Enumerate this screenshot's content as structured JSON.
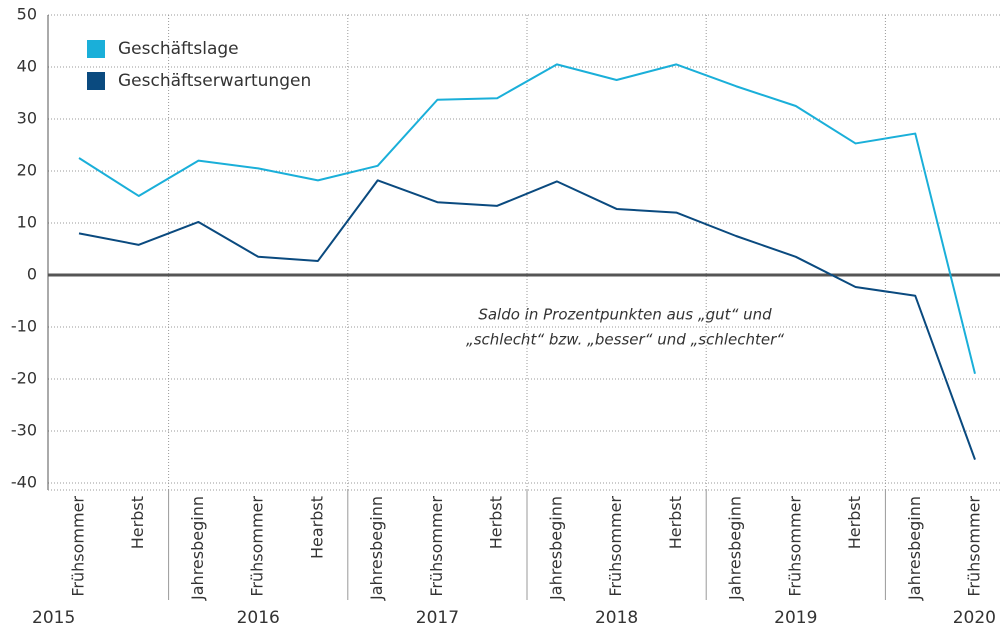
{
  "chart_data": {
    "type": "line",
    "categories": [
      "Frühsommer",
      "Herbst",
      "Jahresbeginn",
      "Frühsommer",
      "Hearbst",
      "Jahresbeginn",
      "Frühsommer",
      "Herbst",
      "Jahresbeginn",
      "Frühsommer",
      "Herbst",
      "Jahresbeginn",
      "Frühsommer",
      "Herbst",
      "Jahresbeginn",
      "Frühsommer"
    ],
    "years": [
      "2015",
      "2016",
      "2017",
      "2018",
      "2019",
      "2020"
    ],
    "series": [
      {
        "name": "Geschäftslage",
        "color": "#1aafd9",
        "values": [
          22.5,
          15.2,
          22,
          20.5,
          18.2,
          21,
          33.7,
          34,
          40.5,
          37.5,
          40.5,
          36.3,
          32.5,
          25.3,
          27.2,
          -19
        ]
      },
      {
        "name": "Geschäftserwartungen",
        "color": "#0a4a7f",
        "values": [
          8,
          5.8,
          10.2,
          3.5,
          2.7,
          18.2,
          14,
          13.3,
          18,
          12.7,
          12,
          7.5,
          3.5,
          -2.3,
          -4,
          -35.5
        ]
      }
    ],
    "ylim": [
      -40,
      50
    ],
    "yticks": [
      -40,
      -30,
      -20,
      -10,
      0,
      10,
      20,
      30,
      40,
      50
    ],
    "grid": true,
    "annotation": [
      "Saldo in Prozentpunkten aus „gut“ und",
      "„schlecht“ bzw. „besser“ und „schlechter“"
    ]
  }
}
